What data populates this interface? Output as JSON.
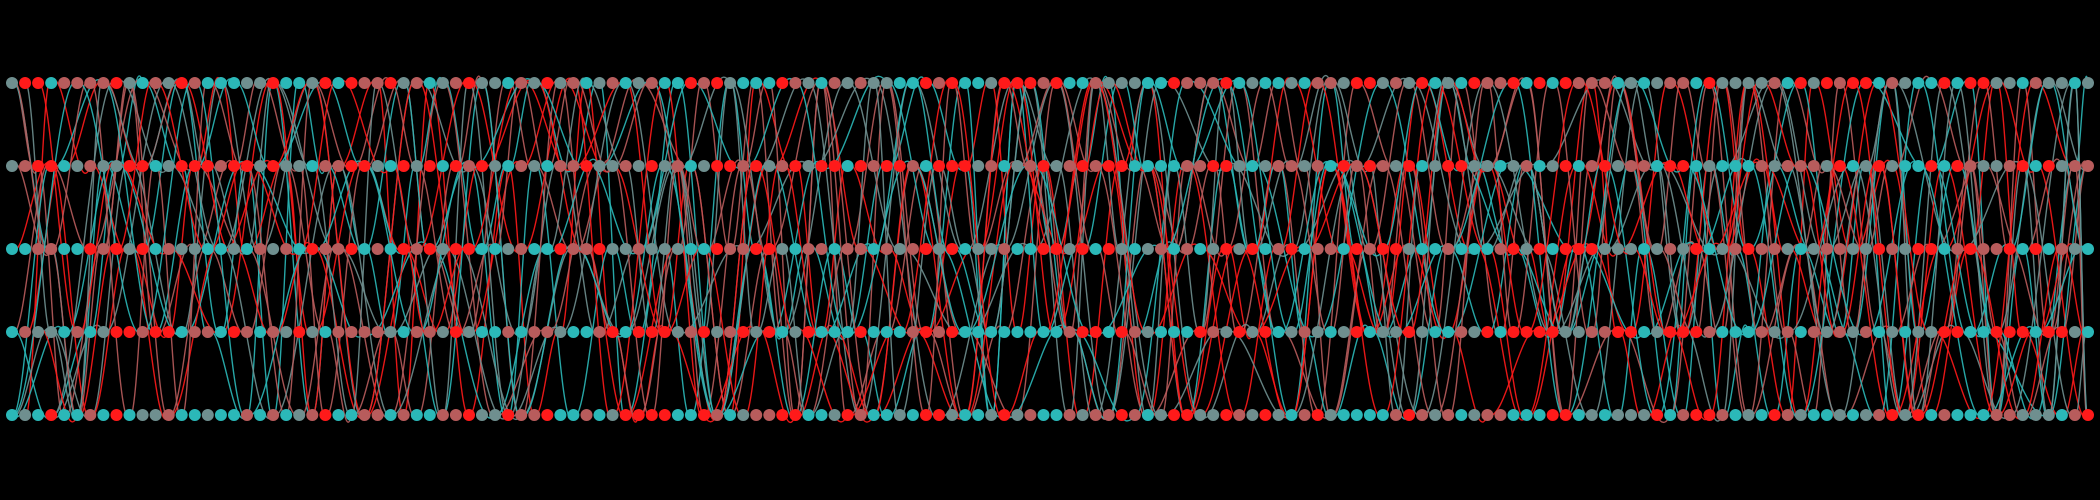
{
  "background": "#000000",
  "palette": {
    "cyan": "#2bb8b8",
    "red": "#ff1a1a",
    "rose": "#b85c5c",
    "gray": "#6f8f8f"
  },
  "rows": 5,
  "columns": 160,
  "node_color_pattern": [
    "cyan",
    "red",
    "rose",
    "gray",
    "red",
    "cyan",
    "gray",
    "rose",
    "red",
    "gray",
    "cyan",
    "rose"
  ],
  "curve_color_pattern": [
    "cyan",
    "red",
    "rose",
    "gray"
  ]
}
